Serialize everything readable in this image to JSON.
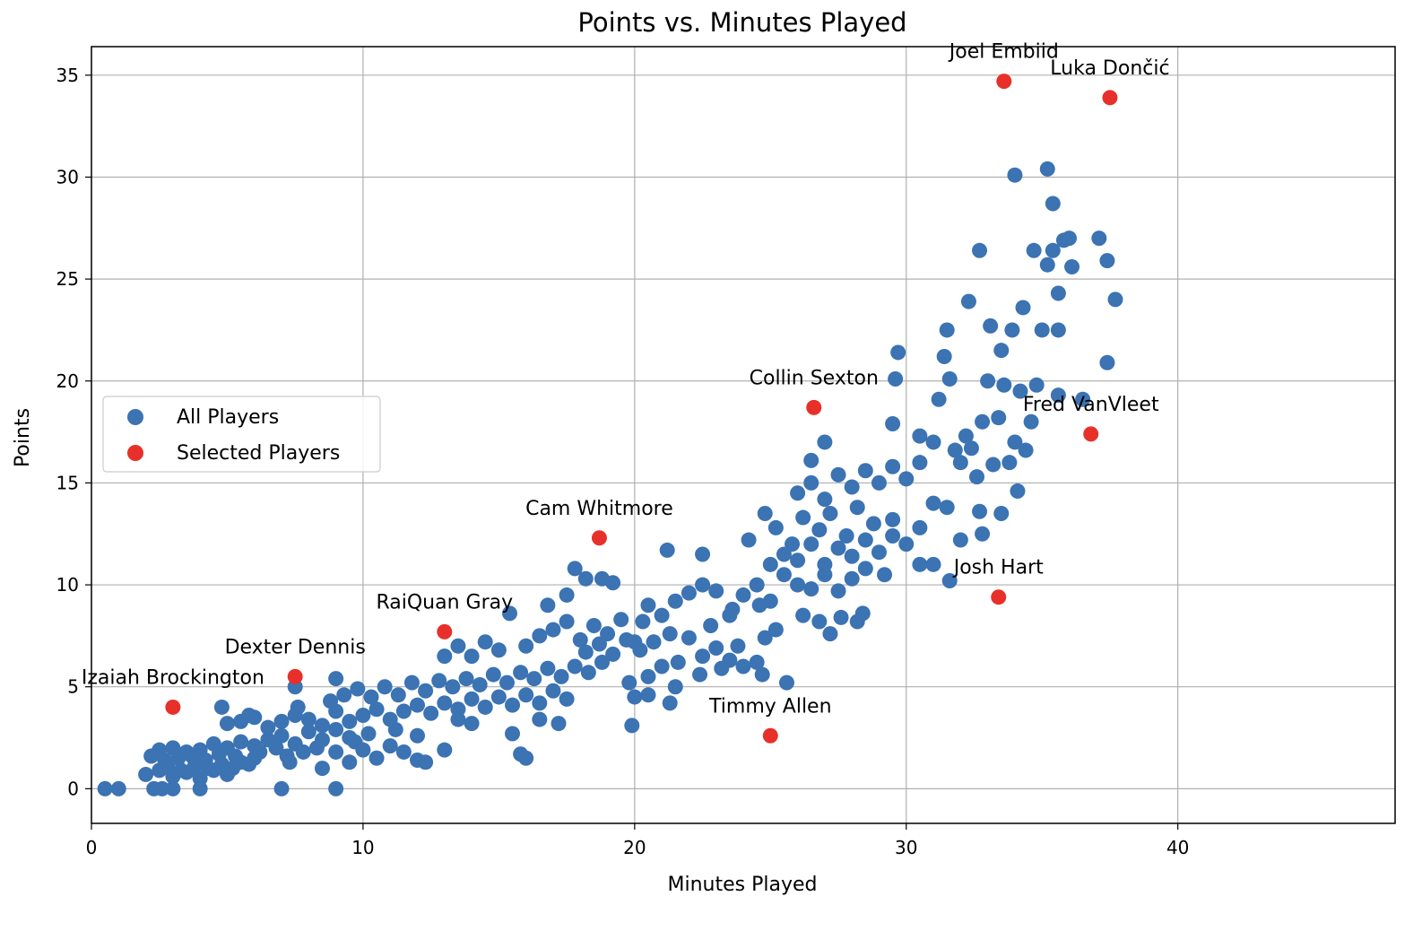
{
  "chart_data": {
    "type": "scatter",
    "title": "Points vs. Minutes Played",
    "xlabel": "Minutes Played",
    "ylabel": "Points",
    "xlim": [
      0,
      48
    ],
    "ylim": [
      -1.7,
      36.4
    ],
    "xticks": [
      0,
      10,
      20,
      30,
      40
    ],
    "yticks": [
      0,
      5,
      10,
      15,
      20,
      25,
      30,
      35
    ],
    "grid": true,
    "legend_position": "center-left",
    "series": [
      {
        "name": "All Players",
        "color": "#3b73b3",
        "points": [
          [
            0.5,
            0
          ],
          [
            1,
            0
          ],
          [
            2.3,
            0
          ],
          [
            2.6,
            0
          ],
          [
            3,
            0
          ],
          [
            4,
            0
          ],
          [
            7,
            0
          ],
          [
            9,
            0
          ],
          [
            2,
            0.7
          ],
          [
            2.5,
            0.9
          ],
          [
            3,
            0.6
          ],
          [
            3.5,
            0.8
          ],
          [
            4,
            0.5
          ],
          [
            4.5,
            0.9
          ],
          [
            5,
            0.7
          ],
          [
            2.8,
            1.2
          ],
          [
            3.2,
            1.5
          ],
          [
            3.8,
            1.1
          ],
          [
            4.2,
            1.4
          ],
          [
            4.8,
            1.2
          ],
          [
            5.2,
            1.0
          ],
          [
            5.5,
            1.3
          ],
          [
            6,
            1.5
          ],
          [
            2.5,
            1.9
          ],
          [
            3,
            2.0
          ],
          [
            3.5,
            1.8
          ],
          [
            4,
            1.9
          ],
          [
            4.5,
            2.2
          ],
          [
            5,
            2.0
          ],
          [
            5.5,
            2.3
          ],
          [
            6,
            2.1
          ],
          [
            6.5,
            2.4
          ],
          [
            7,
            2.6
          ],
          [
            7.5,
            2.2
          ],
          [
            8,
            2.8
          ],
          [
            8.5,
            2.4
          ],
          [
            9,
            2.9
          ],
          [
            9.5,
            2.5
          ],
          [
            2.2,
            1.6
          ],
          [
            2.7,
            1.4
          ],
          [
            3.3,
            0.9
          ],
          [
            3.7,
            1.6
          ],
          [
            4.3,
            1.0
          ],
          [
            4.7,
            1.7
          ],
          [
            5.3,
            1.6
          ],
          [
            5.8,
            1.2
          ],
          [
            6.2,
            1.8
          ],
          [
            6.8,
            2.0
          ],
          [
            7.2,
            1.6
          ],
          [
            7.8,
            1.8
          ],
          [
            5,
            3.2
          ],
          [
            5.5,
            3.3
          ],
          [
            6,
            3.5
          ],
          [
            6.5,
            3.0
          ],
          [
            7,
            3.3
          ],
          [
            7.5,
            3.6
          ],
          [
            8,
            3.4
          ],
          [
            8.5,
            3.1
          ],
          [
            9,
            3.8
          ],
          [
            9.5,
            3.3
          ],
          [
            10,
            3.6
          ],
          [
            10.5,
            3.9
          ],
          [
            11,
            3.4
          ],
          [
            11.5,
            3.8
          ],
          [
            12,
            4.1
          ],
          [
            12.5,
            3.7
          ],
          [
            13,
            4.2
          ],
          [
            13.5,
            3.9
          ],
          [
            14,
            4.4
          ],
          [
            14.5,
            4.0
          ],
          [
            15,
            4.5
          ],
          [
            15.5,
            4.1
          ],
          [
            16,
            4.6
          ],
          [
            16.5,
            4.2
          ],
          [
            17,
            4.8
          ],
          [
            17.5,
            4.4
          ],
          [
            4.8,
            4.0
          ],
          [
            5.8,
            3.6
          ],
          [
            7.6,
            4.0
          ],
          [
            8.8,
            4.3
          ],
          [
            9.3,
            4.6
          ],
          [
            9.8,
            4.9
          ],
          [
            10.3,
            4.5
          ],
          [
            10.8,
            5.0
          ],
          [
            11.3,
            4.6
          ],
          [
            11.8,
            5.2
          ],
          [
            12.3,
            4.8
          ],
          [
            12.8,
            5.3
          ],
          [
            13.3,
            5.0
          ],
          [
            13.8,
            5.4
          ],
          [
            14.3,
            5.1
          ],
          [
            14.8,
            5.6
          ],
          [
            15.3,
            5.2
          ],
          [
            15.8,
            5.7
          ],
          [
            16.3,
            5.4
          ],
          [
            16.8,
            5.9
          ],
          [
            17.3,
            5.5
          ],
          [
            17.8,
            6.0
          ],
          [
            18.3,
            5.7
          ],
          [
            18.8,
            6.2
          ],
          [
            8.5,
            1.0
          ],
          [
            9,
            1.8
          ],
          [
            9.5,
            1.3
          ],
          [
            10,
            1.9
          ],
          [
            10.5,
            1.5
          ],
          [
            11,
            2.1
          ],
          [
            11.5,
            1.8
          ],
          [
            12,
            1.4
          ],
          [
            12.3,
            1.3
          ],
          [
            13,
            1.9
          ],
          [
            9,
            5.4
          ],
          [
            7.5,
            5.0
          ],
          [
            15.5,
            2.7
          ],
          [
            16,
            1.5
          ],
          [
            15.8,
            1.7
          ],
          [
            17.2,
            3.2
          ],
          [
            16.5,
            3.4
          ],
          [
            14,
            3.2
          ],
          [
            13.5,
            3.4
          ],
          [
            12,
            2.6
          ],
          [
            11.2,
            2.9
          ],
          [
            10.2,
            2.7
          ],
          [
            9.7,
            2.3
          ],
          [
            8.3,
            2.0
          ],
          [
            7.3,
            1.3
          ],
          [
            13,
            6.5
          ],
          [
            13.5,
            7.0
          ],
          [
            14,
            6.5
          ],
          [
            14.5,
            7.2
          ],
          [
            15,
            6.8
          ],
          [
            15.4,
            8.6
          ],
          [
            16,
            7.0
          ],
          [
            16.5,
            7.5
          ],
          [
            17,
            7.8
          ],
          [
            17.5,
            8.2
          ],
          [
            18,
            7.3
          ],
          [
            18.5,
            8.0
          ],
          [
            19,
            7.6
          ],
          [
            19.5,
            8.3
          ],
          [
            20,
            7.2
          ],
          [
            20.3,
            8.2
          ],
          [
            18.2,
            6.7
          ],
          [
            18.7,
            7.1
          ],
          [
            19.2,
            6.6
          ],
          [
            19.7,
            7.3
          ],
          [
            20.2,
            6.8
          ],
          [
            20.7,
            7.2
          ],
          [
            21,
            6.0
          ],
          [
            21.3,
            7.6
          ],
          [
            21.6,
            6.2
          ],
          [
            22,
            7.4
          ],
          [
            22.5,
            6.5
          ],
          [
            23,
            6.9
          ],
          [
            23.5,
            6.3
          ],
          [
            24,
            6.0
          ],
          [
            16.8,
            9.0
          ],
          [
            17.5,
            9.5
          ],
          [
            17.8,
            10.8
          ],
          [
            18.2,
            10.3
          ],
          [
            18.8,
            10.3
          ],
          [
            19.2,
            10.1
          ],
          [
            20.5,
            9.0
          ],
          [
            21,
            8.5
          ],
          [
            21.5,
            9.2
          ],
          [
            22,
            9.6
          ],
          [
            22.5,
            10.0
          ],
          [
            23,
            9.7
          ],
          [
            23.5,
            8.5
          ],
          [
            21.2,
            11.7
          ],
          [
            22.5,
            11.5
          ],
          [
            20,
            4.5
          ],
          [
            20.5,
            4.6
          ],
          [
            19.8,
            5.2
          ],
          [
            19.9,
            3.1
          ],
          [
            21.3,
            4.2
          ],
          [
            22.4,
            5.6
          ],
          [
            23.2,
            5.9
          ],
          [
            24.7,
            5.6
          ],
          [
            24.5,
            6.2
          ],
          [
            20.5,
            5.5
          ],
          [
            21.5,
            5.0
          ],
          [
            23.8,
            7.0
          ],
          [
            24,
            9.5
          ],
          [
            24.5,
            10.0
          ],
          [
            25,
            9.2
          ],
          [
            25.5,
            10.5
          ],
          [
            26,
            10.0
          ],
          [
            26.5,
            9.8
          ],
          [
            27,
            10.5
          ],
          [
            27.5,
            9.7
          ],
          [
            28,
            10.3
          ],
          [
            28.5,
            10.8
          ],
          [
            24.2,
            12.2
          ],
          [
            24.8,
            13.5
          ],
          [
            25.2,
            12.8
          ],
          [
            25.8,
            12.0
          ],
          [
            26.2,
            13.3
          ],
          [
            26.8,
            12.7
          ],
          [
            27.2,
            13.5
          ],
          [
            27.8,
            12.4
          ],
          [
            28.2,
            13.8
          ],
          [
            28.8,
            13.0
          ],
          [
            25.0,
            11.0
          ],
          [
            25.5,
            11.5
          ],
          [
            26,
            11.2
          ],
          [
            26.5,
            12.0
          ],
          [
            27,
            11.0
          ],
          [
            27.5,
            11.8
          ],
          [
            28,
            11.4
          ],
          [
            28.5,
            12.2
          ],
          [
            29,
            11.6
          ],
          [
            29.5,
            12.4
          ],
          [
            26,
            14.5
          ],
          [
            26.5,
            15.0
          ],
          [
            27,
            14.2
          ],
          [
            27.5,
            15.4
          ],
          [
            28,
            14.8
          ],
          [
            28.5,
            15.6
          ],
          [
            29,
            15.0
          ],
          [
            29.5,
            15.8
          ],
          [
            30,
            15.2
          ],
          [
            30.5,
            16.0
          ],
          [
            26.2,
            8.5
          ],
          [
            26.8,
            8.2
          ],
          [
            27.2,
            7.6
          ],
          [
            27.6,
            8.4
          ],
          [
            28.2,
            8.2
          ],
          [
            28.4,
            8.6
          ],
          [
            25.6,
            5.2
          ],
          [
            25.2,
            7.8
          ],
          [
            24.8,
            7.4
          ],
          [
            26.5,
            16.1
          ],
          [
            27,
            17.0
          ],
          [
            24.6,
            9.0
          ],
          [
            23.6,
            8.8
          ],
          [
            22.8,
            8.0
          ],
          [
            29.5,
            17.9
          ],
          [
            29.7,
            21.4
          ],
          [
            29.6,
            20.1
          ],
          [
            30.5,
            17.3
          ],
          [
            31,
            17.0
          ],
          [
            31.2,
            19.1
          ],
          [
            31.4,
            21.2
          ],
          [
            31.5,
            22.5
          ],
          [
            31.6,
            20.1
          ],
          [
            31.8,
            16.6
          ],
          [
            32,
            16.0
          ],
          [
            32.2,
            17.3
          ],
          [
            32.4,
            16.7
          ],
          [
            32.6,
            15.3
          ],
          [
            32.8,
            18.0
          ],
          [
            33,
            20.0
          ],
          [
            33.2,
            15.9
          ],
          [
            33.4,
            18.2
          ],
          [
            33.6,
            19.8
          ],
          [
            33.8,
            16.0
          ],
          [
            34,
            17.0
          ],
          [
            34.2,
            19.5
          ],
          [
            34.4,
            16.6
          ],
          [
            34.6,
            18.0
          ],
          [
            34.8,
            19.8
          ],
          [
            35,
            22.5
          ],
          [
            32.3,
            23.9
          ],
          [
            32.7,
            26.4
          ],
          [
            33.1,
            22.7
          ],
          [
            33.5,
            21.5
          ],
          [
            33.9,
            22.5
          ],
          [
            34.3,
            23.6
          ],
          [
            34.7,
            26.4
          ],
          [
            35.2,
            25.7
          ],
          [
            35.4,
            26.4
          ],
          [
            35.6,
            24.3
          ],
          [
            35.8,
            26.9
          ],
          [
            36,
            27.0
          ],
          [
            36.1,
            25.6
          ],
          [
            35.2,
            30.4
          ],
          [
            35.4,
            28.7
          ],
          [
            34.0,
            30.1
          ],
          [
            37.1,
            27.0
          ],
          [
            37.4,
            25.9
          ],
          [
            37.7,
            24.0
          ],
          [
            37.4,
            20.9
          ],
          [
            35.6,
            22.5
          ],
          [
            35.6,
            19.3
          ],
          [
            36.5,
            19.1
          ],
          [
            34.1,
            14.6
          ],
          [
            33.5,
            13.5
          ],
          [
            32.7,
            13.6
          ],
          [
            32.8,
            12.5
          ],
          [
            32,
            12.2
          ],
          [
            31.5,
            13.8
          ],
          [
            31,
            14.0
          ],
          [
            30.5,
            12.8
          ],
          [
            30.5,
            11.0
          ],
          [
            31,
            11.0
          ],
          [
            31.6,
            10.2
          ],
          [
            30,
            12.0
          ],
          [
            29.5,
            13.2
          ],
          [
            29.2,
            10.5
          ]
        ]
      },
      {
        "name": "Selected Players",
        "color": "#e8302a",
        "points": [
          {
            "name": "Joel Embiid",
            "x": 33.6,
            "y": 34.7
          },
          {
            "name": "Luka Dončić",
            "x": 37.5,
            "y": 33.9
          },
          {
            "name": "Collin Sexton",
            "x": 26.6,
            "y": 18.7
          },
          {
            "name": "Fred VanVleet",
            "x": 36.8,
            "y": 17.4
          },
          {
            "name": "Cam Whitmore",
            "x": 18.7,
            "y": 12.3
          },
          {
            "name": "Josh Hart",
            "x": 33.4,
            "y": 9.4
          },
          {
            "name": "RaiQuan Gray",
            "x": 13.0,
            "y": 7.7
          },
          {
            "name": "Dexter Dennis",
            "x": 7.5,
            "y": 5.5
          },
          {
            "name": "Izaiah Brockington",
            "x": 3.0,
            "y": 4.0
          },
          {
            "name": "Timmy Allen",
            "x": 25.0,
            "y": 2.6
          }
        ]
      }
    ]
  }
}
